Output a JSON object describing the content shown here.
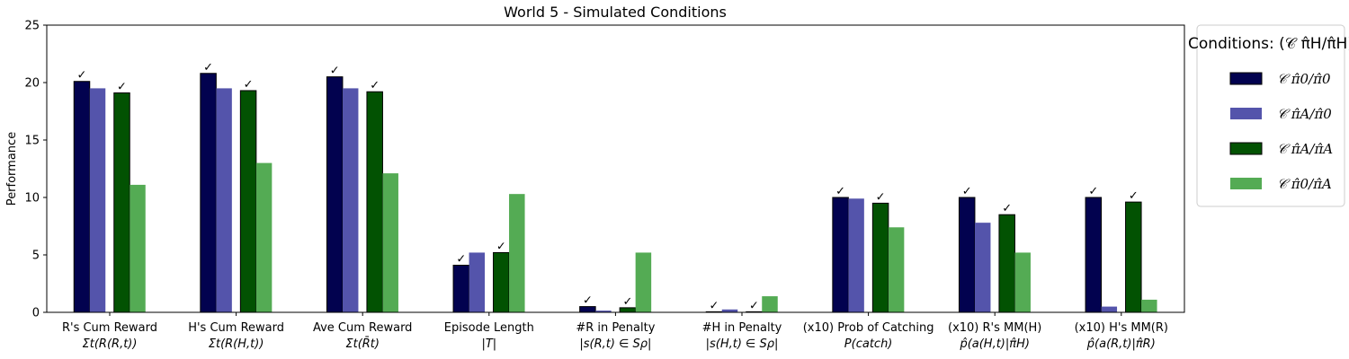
{
  "chart_data": {
    "type": "bar",
    "title": "World 5 - Simulated Conditions",
    "xlabel": "",
    "ylabel": "Performance",
    "ylim": [
      0,
      25
    ],
    "yticks": [
      0,
      5,
      10,
      15,
      20,
      25
    ],
    "grid": false,
    "legend_placement": "outside-right",
    "legend_title": "Conditions: (𝒞 π̂H/π̂H)",
    "categories": [
      {
        "line1": "R's Cum Reward",
        "line2": "Σt(R(R,t))"
      },
      {
        "line1": "H's Cum Reward",
        "line2": "Σt(R(H,t))"
      },
      {
        "line1": "Ave Cum Reward",
        "line2": "Σt(R̄t)"
      },
      {
        "line1": "Episode Length",
        "line2": "|T|"
      },
      {
        "line1": "#R in Penalty",
        "line2": "|s(R,t) ∈ Sρ|"
      },
      {
        "line1": "#H in Penalty",
        "line2": "|s(H,t) ∈ Sρ|"
      },
      {
        "line1": "(x10) Prob of Catching",
        "line2": "P(catch)"
      },
      {
        "line1": "(x10) R's MM(H)",
        "line2": "p̂(a(H,t)|π̂H)"
      },
      {
        "line1": "(x10) H's MM(R)",
        "line2": "p̂(a(R,t)|π̂R)"
      }
    ],
    "series": [
      {
        "name": "𝒞 π̂0/π̂0",
        "color": "#02024f",
        "edge": true,
        "values": [
          20.1,
          20.8,
          20.5,
          4.1,
          0.5,
          0.05,
          10.0,
          10.0,
          10.0
        ],
        "checks": [
          true,
          true,
          true,
          true,
          true,
          true,
          true,
          true,
          true
        ]
      },
      {
        "name": "𝒞 π̂A/π̂0",
        "color": "#5454ab",
        "edge": false,
        "values": [
          19.5,
          19.5,
          19.5,
          5.2,
          0.15,
          0.25,
          9.9,
          7.8,
          0.5
        ],
        "checks": [
          false,
          false,
          false,
          false,
          false,
          false,
          false,
          false,
          false
        ]
      },
      {
        "name": "𝒞 π̂A/π̂A",
        "color": "#025202",
        "edge": true,
        "values": [
          19.1,
          19.3,
          19.2,
          5.2,
          0.4,
          0.05,
          9.5,
          8.5,
          9.6
        ],
        "checks": [
          true,
          true,
          true,
          true,
          true,
          true,
          true,
          true,
          true
        ]
      },
      {
        "name": "𝒞 π̂0/π̂A",
        "color": "#54ab54",
        "edge": false,
        "values": [
          11.1,
          13.0,
          12.1,
          10.3,
          5.2,
          1.4,
          7.4,
          5.2,
          1.1
        ],
        "checks": [
          false,
          false,
          false,
          false,
          false,
          false,
          false,
          false,
          false
        ]
      }
    ],
    "check_mark": "✓"
  }
}
